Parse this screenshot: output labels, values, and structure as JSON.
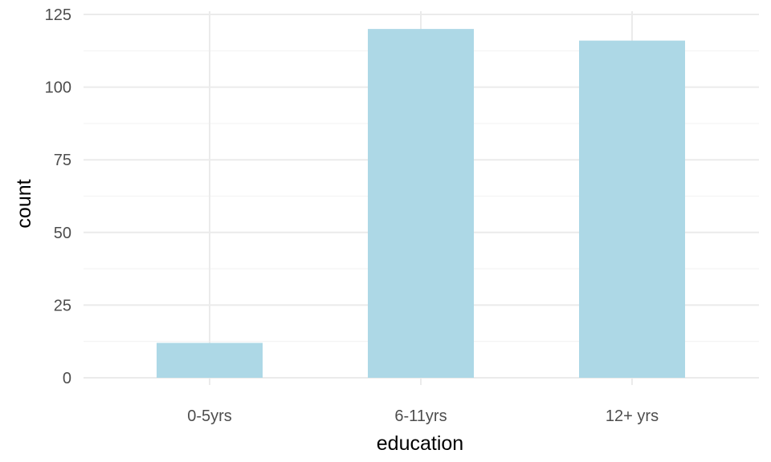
{
  "chart_data": {
    "type": "bar",
    "categories": [
      "0-5yrs",
      "6-11yrs",
      "12+ yrs"
    ],
    "values": [
      12,
      120,
      116
    ],
    "xlabel": "education",
    "ylabel": "count",
    "ylim": [
      0,
      125
    ],
    "yticks": [
      0,
      25,
      50,
      75,
      100,
      125
    ],
    "grid": true,
    "legend": "none",
    "colors": {
      "bar": "#ADD8E6",
      "grid_major": "#EBEBEB",
      "grid_minor": "#F3F3F3"
    }
  }
}
